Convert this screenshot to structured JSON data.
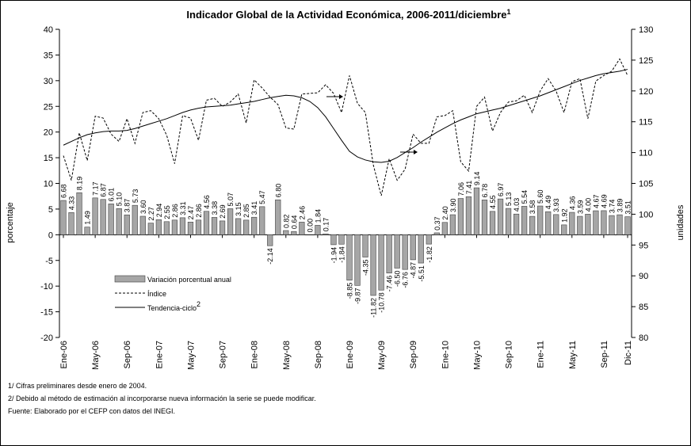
{
  "chart_data": {
    "type": "bar",
    "title": "Indicador Global de la Actividad Económica, 2006-2011/diciembre",
    "title_note": "1",
    "ylabel": "porcentaje",
    "y2label": "unidades",
    "categories": [
      "Ene-06",
      null,
      null,
      null,
      "May-06",
      null,
      null,
      null,
      "Sep-06",
      null,
      null,
      null,
      "Ene-07",
      null,
      null,
      null,
      "May-07",
      null,
      null,
      null,
      "Sep-07",
      null,
      null,
      null,
      "Ene-08",
      null,
      null,
      null,
      "May-08",
      null,
      null,
      null,
      "Sep-08",
      null,
      null,
      null,
      "Ene-09",
      null,
      null,
      null,
      "May-09",
      null,
      null,
      null,
      "Sep-09",
      null,
      null,
      null,
      "Ene-10",
      null,
      null,
      null,
      "May-10",
      null,
      null,
      null,
      "Sep-10",
      null,
      null,
      null,
      "Ene-11",
      null,
      null,
      null,
      "May-11",
      null,
      null,
      null,
      "Sep-11",
      null,
      null,
      "Dic-11"
    ],
    "series": [
      {
        "name": "Variación porcentual anual",
        "type": "bar",
        "color": "#a6a6a6",
        "values": [
          6.68,
          4.33,
          8.19,
          1.49,
          7.17,
          6.87,
          6.01,
          5.1,
          3.87,
          5.73,
          3.6,
          2.27,
          2.94,
          2.55,
          2.86,
          3.31,
          2.47,
          2.86,
          4.56,
          3.38,
          2.69,
          5.07,
          3.15,
          2.85,
          3.41,
          5.47,
          -2.14,
          6.8,
          0.82,
          0.64,
          2.46,
          0.0,
          1.84,
          0.17,
          -1.94,
          -1.84,
          -8.85,
          -9.87,
          -4.35,
          -11.82,
          -10.78,
          -7.46,
          -6.5,
          -6.76,
          -4.87,
          -5.51,
          -1.82,
          0.37,
          2.4,
          3.9,
          7.06,
          7.41,
          9.14,
          6.78,
          4.55,
          6.97,
          5.13,
          4.03,
          5.54,
          3.58,
          5.6,
          4.49,
          3.93,
          1.92,
          4.36,
          3.59,
          4.0,
          4.67,
          4.69,
          3.74,
          3.89,
          3.51
        ],
        "value_labels": [
          "6.68",
          "4.33",
          "8.19",
          "1.49",
          "7.17",
          "6.87",
          "6.01",
          "5.10",
          "3.87",
          "5.73",
          "3.60",
          "2.27",
          "2.94",
          "2.55",
          "2.86",
          "3.31",
          "2.47",
          "2.86",
          "4.56",
          "3.38",
          "2.69",
          "5.07",
          "3.15",
          "2.85",
          "3.41",
          "5.47",
          "-2.14",
          "6.80",
          "0.82",
          "0.64",
          "2.46",
          "0.00",
          "1.84",
          "0.17",
          "-1.94",
          "-1.84",
          "-8.85",
          "-9.87",
          "-4.35",
          "-11.82",
          "-10.78",
          "-7.46",
          "-6.50",
          "-6.76",
          "-4.87",
          "-5.51",
          "-1.82",
          "0.37",
          "2.40",
          "3.90",
          "7.06",
          "7.41",
          "9.14",
          "6.78",
          "4.55",
          "6.97",
          "5.13",
          "4.03",
          "5.54",
          "3.58",
          "5.60",
          "4.49",
          "3.93",
          "1.92",
          "4.36",
          "3.59",
          "4.00",
          "4.67",
          "4.69",
          "3.74",
          "3.89",
          "3.51"
        ]
      },
      {
        "name": "Índice",
        "type": "line",
        "dash": true,
        "axis": "y2",
        "color": "#000000",
        "values": [
          109.5,
          105.5,
          113.2,
          108.7,
          115.9,
          115.6,
          113.0,
          111.8,
          115.5,
          111.5,
          116.5,
          116.8,
          115.5,
          112.8,
          108.2,
          116.0,
          115.6,
          112.0,
          118.5,
          118.8,
          117.5,
          118.2,
          119.5,
          114.8,
          121.8,
          120.5,
          119.0,
          117.8,
          114.0,
          113.8,
          119.5,
          119.6,
          119.7,
          121.0,
          119.6,
          116.5,
          122.5,
          118.0,
          116.5,
          108.0,
          103.0,
          109.0,
          105.5,
          107.3,
          113.0,
          111.5,
          111.5,
          115.8,
          116.0,
          116.8,
          108.5,
          107.0,
          117.5,
          119.0,
          113.5,
          116.5,
          118.2,
          118.4,
          119.3,
          116.5,
          120.0,
          122.0,
          120.0,
          116.5,
          121.5,
          122.0,
          115.5,
          121.6,
          122.5,
          123.2,
          125.2,
          122.5
        ]
      },
      {
        "name": "Tendencia-ciclo",
        "name_note": "2",
        "type": "line",
        "axis": "y2",
        "color": "#000000",
        "values": [
          111.2,
          111.8,
          112.4,
          112.9,
          113.2,
          113.4,
          113.5,
          113.5,
          113.6,
          113.9,
          114.3,
          114.7,
          115.1,
          115.5,
          116.0,
          116.5,
          116.9,
          117.2,
          117.4,
          117.5,
          117.6,
          117.7,
          117.9,
          118.1,
          118.3,
          118.6,
          118.9,
          119.1,
          119.3,
          119.2,
          118.9,
          118.3,
          117.3,
          115.8,
          113.9,
          112.0,
          110.2,
          109.3,
          108.8,
          108.5,
          108.4,
          108.6,
          109.2,
          110.0,
          110.8,
          111.7,
          112.5,
          113.3,
          114.0,
          114.7,
          115.3,
          115.8,
          116.3,
          116.6,
          116.9,
          117.2,
          117.6,
          118.0,
          118.4,
          118.8,
          119.2,
          119.7,
          120.2,
          120.7,
          121.2,
          121.7,
          122.1,
          122.5,
          122.8,
          123.0,
          123.2,
          123.5
        ]
      }
    ],
    "ylim": [
      -20,
      40
    ],
    "yticks": [
      -20,
      -15,
      -10,
      -5,
      0,
      5,
      10,
      15,
      20,
      25,
      30,
      35,
      40
    ],
    "y2lim": [
      80,
      130
    ],
    "y2ticks": [
      80,
      85,
      90,
      95,
      100,
      105,
      110,
      115,
      120,
      125,
      130
    ],
    "footnotes": [
      "1/ Cifras preliminares desde enero de 2004.",
      "2/ Debido al método de estimación al incorporarse nueva información la serie se puede modificar.",
      "Fuente: Elaborado por el CEFP con datos del INEGI."
    ]
  }
}
